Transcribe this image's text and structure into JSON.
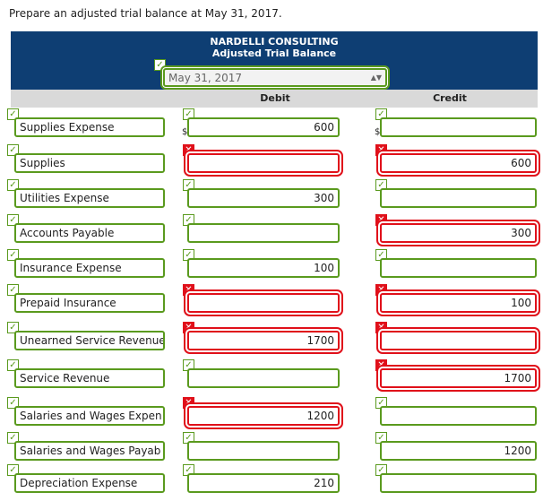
{
  "instruction": "Prepare an adjusted trial balance at May 31, 2017.",
  "header": {
    "company": "NARDELLI CONSULTING",
    "title": "Adjusted Trial Balance",
    "date": "May 31, 2017",
    "date_ok": true
  },
  "columns": {
    "debit": "Debit",
    "credit": "Credit",
    "currency": "$"
  },
  "rows": [
    {
      "account": "Supplies Expense",
      "debit": 600,
      "credit": null,
      "debit_ok": true,
      "credit_ok": true
    },
    {
      "account": "Supplies",
      "debit": null,
      "credit": 600,
      "debit_ok": false,
      "credit_ok": false
    },
    {
      "account": "Utilities Expense",
      "debit": 300,
      "credit": null,
      "debit_ok": true,
      "credit_ok": true
    },
    {
      "account": "Accounts Payable",
      "debit": null,
      "credit": 300,
      "debit_ok": true,
      "credit_ok": false
    },
    {
      "account": "Insurance Expense",
      "debit": 100,
      "credit": null,
      "debit_ok": true,
      "credit_ok": true
    },
    {
      "account": "Prepaid Insurance",
      "debit": null,
      "credit": 100,
      "debit_ok": false,
      "credit_ok": false
    },
    {
      "account": "Unearned Service Revenue",
      "debit": 1700,
      "credit": null,
      "debit_ok": false,
      "credit_ok": false
    },
    {
      "account": "Service Revenue",
      "debit": null,
      "credit": 1700,
      "debit_ok": true,
      "credit_ok": false
    },
    {
      "account": "Salaries and Wages Expen",
      "debit": 1200,
      "credit": null,
      "debit_ok": false,
      "credit_ok": true
    },
    {
      "account": "Salaries and Wages Payab",
      "debit": null,
      "credit": 1200,
      "debit_ok": true,
      "credit_ok": true
    },
    {
      "account": "Depreciation Expense",
      "debit": 210,
      "credit": null,
      "debit_ok": true,
      "credit_ok": true
    }
  ]
}
